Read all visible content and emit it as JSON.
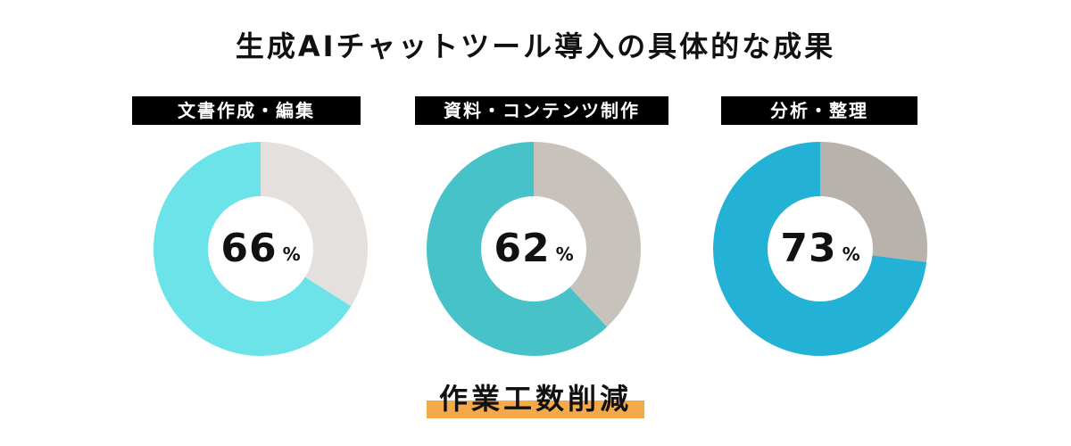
{
  "title": "生成AIチャットツール導入の具体的な成果",
  "footer": "作業工数削減",
  "colors": {
    "highlight": "#F6A94B",
    "label_bg": "#000000",
    "donut_hole": "#FFFFFF"
  },
  "chart_data": [
    {
      "type": "pie",
      "title": "文書作成・編集",
      "value": 66,
      "unit": "%",
      "slices": [
        {
          "value": 66,
          "color": "#6CE3E8"
        },
        {
          "value": 34,
          "color": "#E3E0DD"
        }
      ]
    },
    {
      "type": "pie",
      "title": "資料・コンテンツ制作",
      "value": 62,
      "unit": "%",
      "slices": [
        {
          "value": 62,
          "color": "#46C2C8"
        },
        {
          "value": 38,
          "color": "#C8C2BC"
        }
      ]
    },
    {
      "type": "pie",
      "title": "分析・整理",
      "value": 73,
      "unit": "%",
      "slices": [
        {
          "value": 73,
          "color": "#23B2D5"
        },
        {
          "value": 27,
          "color": "#B7B2AC"
        }
      ]
    }
  ]
}
